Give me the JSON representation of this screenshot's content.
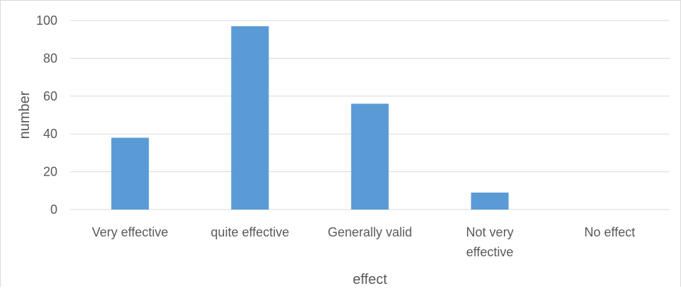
{
  "chart_data": {
    "type": "bar",
    "title": "",
    "xlabel": "effect",
    "ylabel": "number",
    "categories": [
      [
        "Very effective"
      ],
      [
        "quite effective"
      ],
      [
        "Generally valid"
      ],
      [
        "Not very",
        "effective"
      ],
      [
        "No effect"
      ]
    ],
    "values": [
      38,
      97,
      56,
      9,
      0
    ],
    "ylim": [
      0,
      100
    ],
    "yticks": [
      0,
      20,
      40,
      60,
      80,
      100
    ],
    "grid": true,
    "legend": "none",
    "colors": {
      "bar": "#5b9bd5",
      "grid": "#d9d9d9",
      "text": "#595959"
    }
  }
}
